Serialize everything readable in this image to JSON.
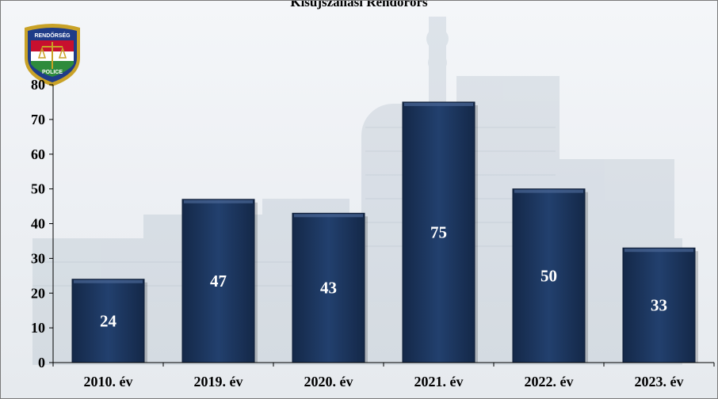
{
  "chart_data": {
    "type": "bar",
    "title": "Kisújszállási Rendőrőrs",
    "categories": [
      "2010. év",
      "2019. év",
      "2020. év",
      "2021. év",
      "2022. év",
      "2023. év"
    ],
    "values": [
      24,
      47,
      43,
      75,
      50,
      33
    ],
    "ylim": [
      0,
      80
    ],
    "yticks": [
      0,
      10,
      20,
      30,
      40,
      50,
      60,
      70,
      80
    ],
    "xlabel": "",
    "ylabel": "",
    "grid": false,
    "legend": "none",
    "bar_color": "#1f3864",
    "label_color": "#ffffff",
    "axis_color": "#000000"
  },
  "logo": {
    "icon": "police-badge-icon",
    "top_text": "RENDŐRSÉG",
    "bottom_text": "POLICE",
    "colors": [
      "#c8102e",
      "#ffffff",
      "#2e8b3c",
      "#1f3c88",
      "#c9a227"
    ]
  }
}
